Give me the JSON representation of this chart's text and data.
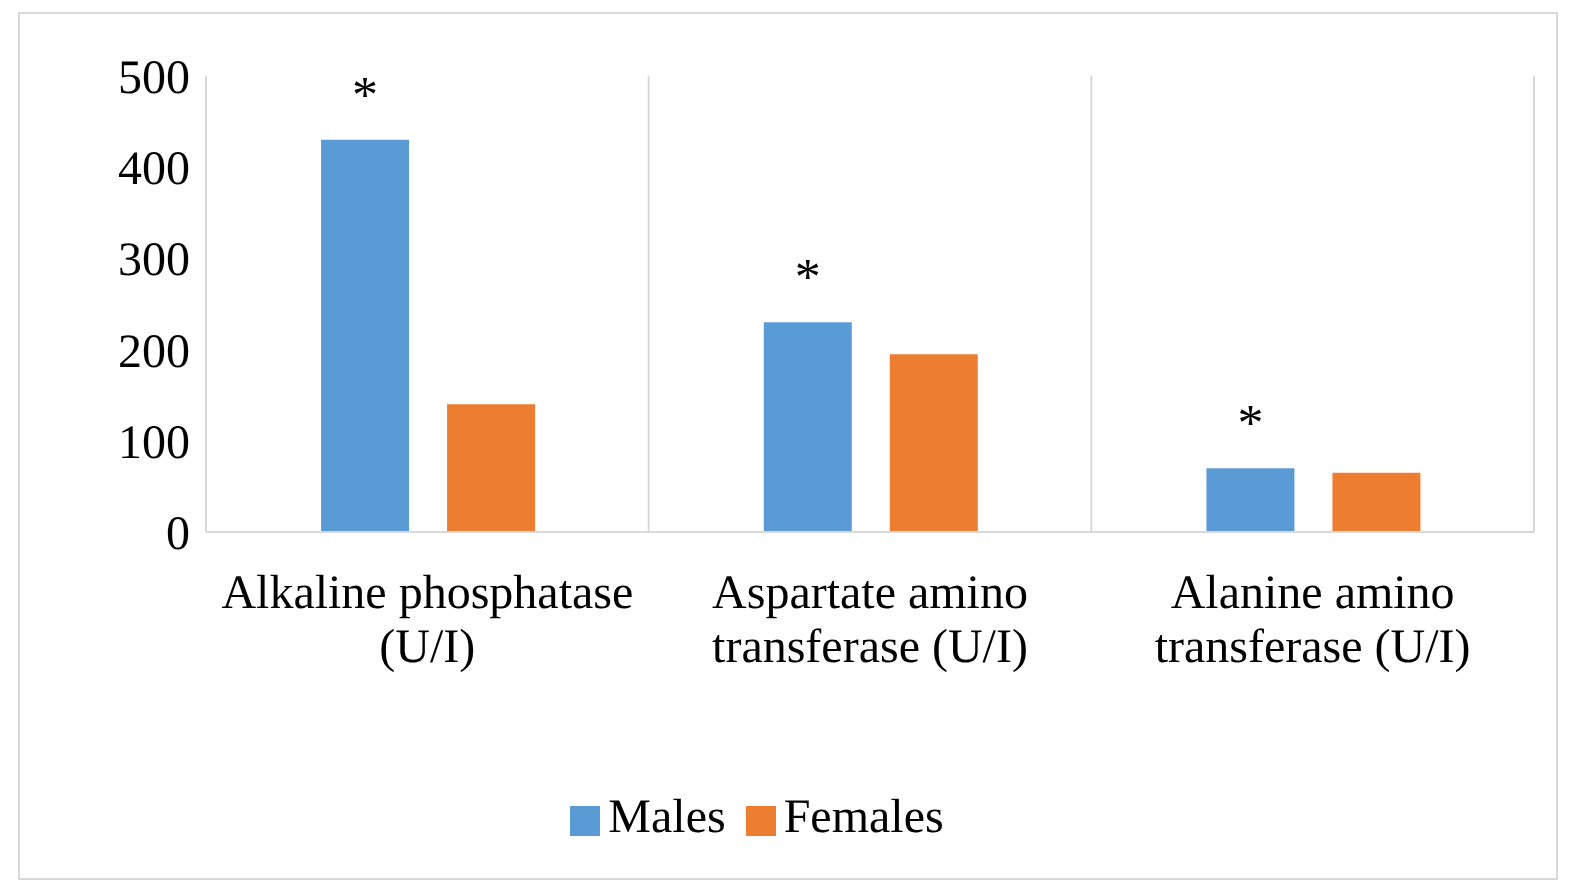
{
  "chart_data": {
    "type": "bar",
    "categories": [
      "Alkaline phosphatase (U/I)",
      "Aspartate amino transferase (U/I)",
      "Alanine amino transferase (U/I)"
    ],
    "series": [
      {
        "name": "Males",
        "color": "#5b9bd5",
        "values": [
          430,
          230,
          70
        ]
      },
      {
        "name": "Females",
        "color": "#ed7d31",
        "values": [
          140,
          195,
          65
        ]
      }
    ],
    "ylim": [
      0,
      500
    ],
    "yticks": [
      0,
      100,
      200,
      300,
      400,
      500
    ],
    "grid": "x",
    "legend": "bottom",
    "annotations": [
      "*",
      "*",
      "*"
    ]
  }
}
